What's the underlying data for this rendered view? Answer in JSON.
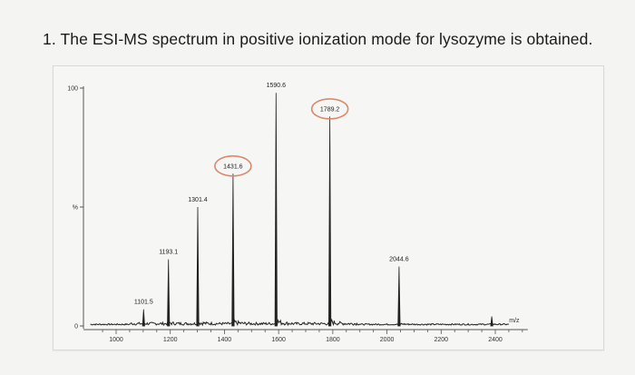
{
  "question": {
    "text": "1. The ESI-MS spectrum in positive ionization mode for lysozyme is obtained."
  },
  "chart_data": {
    "type": "line",
    "title": "",
    "xlabel": "m/z",
    "ylabel": "%",
    "xlim": [
      900,
      2500
    ],
    "ylim": [
      0,
      100
    ],
    "x_ticks": [
      1000,
      1200,
      1400,
      1600,
      1800,
      2000,
      2200,
      2400
    ],
    "y_ticks": [
      0,
      100
    ],
    "peaks": [
      {
        "x": 1101.5,
        "y": 7,
        "label": "1101.5",
        "circled": false
      },
      {
        "x": 1193.1,
        "y": 28,
        "label": "1193.1",
        "circled": false
      },
      {
        "x": 1301.4,
        "y": 50,
        "label": "1301.4",
        "circled": false
      },
      {
        "x": 1431.6,
        "y": 64,
        "label": "1431.6",
        "circled": true
      },
      {
        "x": 1590.6,
        "y": 98,
        "label": "1590.6",
        "circled": false
      },
      {
        "x": 1789.2,
        "y": 88,
        "label": "1789.2",
        "circled": true
      },
      {
        "x": 2044.6,
        "y": 25,
        "label": "2044.6",
        "circled": false
      },
      {
        "x": 2387.0,
        "y": 4,
        "label": "",
        "circled": false
      }
    ],
    "circle_color": "#d9896a",
    "line_color": "#222222"
  }
}
